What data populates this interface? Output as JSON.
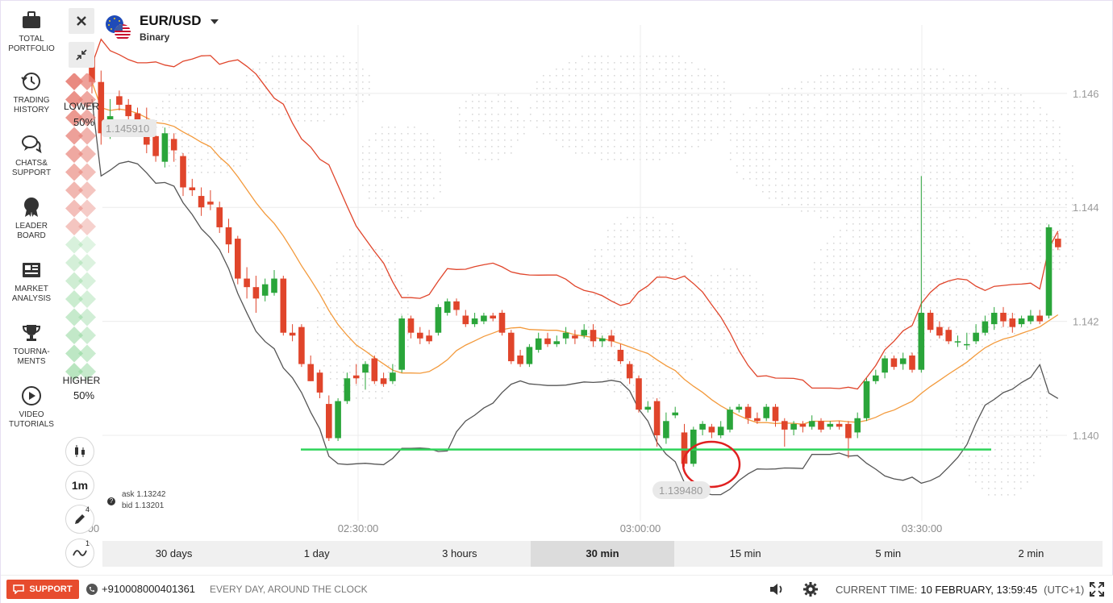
{
  "nav": {
    "items": [
      {
        "icon": "briefcase-icon",
        "label": "TOTAL\nPORTFOLIO"
      },
      {
        "icon": "history-icon",
        "label": "TRADING\nHISTORY"
      },
      {
        "icon": "chat-icon",
        "label": "CHATS&\nSUPPORT"
      },
      {
        "icon": "medal-icon",
        "label": "LEADER\nBOARD"
      },
      {
        "icon": "newspaper-icon",
        "label": "MARKET\nANALYSIS"
      },
      {
        "icon": "trophy-icon",
        "label": "TOURNA-\nMENTS"
      },
      {
        "icon": "play-icon",
        "label": "VIDEO\nTUTORIALS"
      }
    ]
  },
  "asset": {
    "name": "EUR/USD",
    "type": "Binary"
  },
  "sentiment": {
    "lower_label": "LOWER",
    "lower_pct": "50%",
    "higher_label": "HIGHER",
    "higher_pct": "50%",
    "lower_color": "#e8847a",
    "higher_color": "#8fd69a"
  },
  "toolbar": {
    "timeframe_button": "1m",
    "drawing_count": "4",
    "indicator_count": "1"
  },
  "quote": {
    "ask": "ask 1.13242",
    "bid": "bid 1.13201"
  },
  "chart_data": {
    "type": "candlestick",
    "price_labels": [
      "1.146",
      "1.144",
      "1.142",
      "1.140"
    ],
    "time_labels": [
      "02:30:00",
      "03:00:00",
      "03:30:00"
    ],
    "left_time_partial": ":00",
    "top_price_tag": "1.145910",
    "current_price_tag": "1.139480",
    "ylim": [
      1.1385,
      1.1472
    ],
    "support_line_price": 1.13975,
    "colors": {
      "up": "#2aa53a",
      "down": "#e0452b",
      "upper_band": "#e0452b",
      "middle_band": "#f39a3c",
      "lower_band": "#555555",
      "support_line": "#2fd45a",
      "highlight_circle": "#e02020"
    },
    "candles": [
      {
        "o": 1.14662,
        "c": 1.1462,
        "h": 1.1468,
        "l": 1.146
      },
      {
        "o": 1.1462,
        "c": 1.1453,
        "h": 1.1464,
        "l": 1.1451
      },
      {
        "o": 1.1453,
        "c": 1.1456,
        "h": 1.1459,
        "l": 1.1452
      },
      {
        "o": 1.14595,
        "c": 1.1458,
        "h": 1.14605,
        "l": 1.1457
      },
      {
        "o": 1.1458,
        "c": 1.1456,
        "h": 1.1459,
        "l": 1.1453
      },
      {
        "o": 1.14565,
        "c": 1.1454,
        "h": 1.14575,
        "l": 1.14525
      },
      {
        "o": 1.1455,
        "c": 1.1451,
        "h": 1.14575,
        "l": 1.14495
      },
      {
        "o": 1.14525,
        "c": 1.1449,
        "h": 1.1454,
        "l": 1.1448
      },
      {
        "o": 1.1448,
        "c": 1.1453,
        "h": 1.1454,
        "l": 1.1447
      },
      {
        "o": 1.1452,
        "c": 1.145,
        "h": 1.1453,
        "l": 1.1448
      },
      {
        "o": 1.1449,
        "c": 1.14435,
        "h": 1.14495,
        "l": 1.1442
      },
      {
        "o": 1.14435,
        "c": 1.1443,
        "h": 1.1445,
        "l": 1.1442
      },
      {
        "o": 1.1442,
        "c": 1.144,
        "h": 1.14435,
        "l": 1.14385
      },
      {
        "o": 1.1441,
        "c": 1.14405,
        "h": 1.1443,
        "l": 1.14395
      },
      {
        "o": 1.144,
        "c": 1.14365,
        "h": 1.1441,
        "l": 1.14355
      },
      {
        "o": 1.14365,
        "c": 1.14335,
        "h": 1.1438,
        "l": 1.1432
      },
      {
        "o": 1.14345,
        "c": 1.14275,
        "h": 1.1435,
        "l": 1.14265
      },
      {
        "o": 1.14275,
        "c": 1.1426,
        "h": 1.14295,
        "l": 1.1424
      },
      {
        "o": 1.1426,
        "c": 1.1424,
        "h": 1.1428,
        "l": 1.14215
      },
      {
        "o": 1.14245,
        "c": 1.14265,
        "h": 1.14275,
        "l": 1.14235
      },
      {
        "o": 1.1425,
        "c": 1.14275,
        "h": 1.1429,
        "l": 1.14245
      },
      {
        "o": 1.14275,
        "c": 1.1418,
        "h": 1.1428,
        "l": 1.14175
      },
      {
        "o": 1.1418,
        "c": 1.14175,
        "h": 1.14195,
        "l": 1.14165
      },
      {
        "o": 1.1419,
        "c": 1.14125,
        "h": 1.14195,
        "l": 1.1412
      },
      {
        "o": 1.14125,
        "c": 1.14095,
        "h": 1.1414,
        "l": 1.14095
      },
      {
        "o": 1.1411,
        "c": 1.14075,
        "h": 1.14115,
        "l": 1.14065
      },
      {
        "o": 1.14055,
        "c": 1.13995,
        "h": 1.1407,
        "l": 1.1399
      },
      {
        "o": 1.13995,
        "c": 1.1406,
        "h": 1.14065,
        "l": 1.1399
      },
      {
        "o": 1.1406,
        "c": 1.141,
        "h": 1.1411,
        "l": 1.14055
      },
      {
        "o": 1.14105,
        "c": 1.141,
        "h": 1.14125,
        "l": 1.1409
      },
      {
        "o": 1.1411,
        "c": 1.14125,
        "h": 1.1413,
        "l": 1.1408
      },
      {
        "o": 1.14135,
        "c": 1.14095,
        "h": 1.1414,
        "l": 1.1409
      },
      {
        "o": 1.141,
        "c": 1.1409,
        "h": 1.1411,
        "l": 1.14085
      },
      {
        "o": 1.14095,
        "c": 1.1411,
        "h": 1.14125,
        "l": 1.1409
      },
      {
        "o": 1.14115,
        "c": 1.14205,
        "h": 1.1421,
        "l": 1.1411
      },
      {
        "o": 1.14205,
        "c": 1.1418,
        "h": 1.1421,
        "l": 1.1417
      },
      {
        "o": 1.1418,
        "c": 1.1417,
        "h": 1.1419,
        "l": 1.1416
      },
      {
        "o": 1.14175,
        "c": 1.14165,
        "h": 1.14185,
        "l": 1.1416
      },
      {
        "o": 1.1418,
        "c": 1.14225,
        "h": 1.1423,
        "l": 1.14175
      },
      {
        "o": 1.14215,
        "c": 1.14235,
        "h": 1.1424,
        "l": 1.1421
      },
      {
        "o": 1.14235,
        "c": 1.1422,
        "h": 1.1424,
        "l": 1.1421
      },
      {
        "o": 1.1421,
        "c": 1.14195,
        "h": 1.1422,
        "l": 1.1419
      },
      {
        "o": 1.14195,
        "c": 1.14205,
        "h": 1.14215,
        "l": 1.1419
      },
      {
        "o": 1.142,
        "c": 1.1421,
        "h": 1.14215,
        "l": 1.14195
      },
      {
        "o": 1.1421,
        "c": 1.14205,
        "h": 1.14215,
        "l": 1.142
      },
      {
        "o": 1.14215,
        "c": 1.1418,
        "h": 1.1422,
        "l": 1.14175
      },
      {
        "o": 1.1418,
        "c": 1.1413,
        "h": 1.14185,
        "l": 1.14125
      },
      {
        "o": 1.1414,
        "c": 1.14125,
        "h": 1.1415,
        "l": 1.1412
      },
      {
        "o": 1.14125,
        "c": 1.14155,
        "h": 1.1416,
        "l": 1.1412
      },
      {
        "o": 1.1415,
        "c": 1.1417,
        "h": 1.1418,
        "l": 1.14145
      },
      {
        "o": 1.1417,
        "c": 1.1416,
        "h": 1.1418,
        "l": 1.14155
      },
      {
        "o": 1.1416,
        "c": 1.14165,
        "h": 1.14175,
        "l": 1.14155
      },
      {
        "o": 1.1417,
        "c": 1.1418,
        "h": 1.1419,
        "l": 1.1416
      },
      {
        "o": 1.14175,
        "c": 1.1417,
        "h": 1.14185,
        "l": 1.1416
      },
      {
        "o": 1.14175,
        "c": 1.14185,
        "h": 1.14195,
        "l": 1.1417
      },
      {
        "o": 1.14185,
        "c": 1.14165,
        "h": 1.14195,
        "l": 1.14155
      },
      {
        "o": 1.14165,
        "c": 1.1417,
        "h": 1.14175,
        "l": 1.14155
      },
      {
        "o": 1.14175,
        "c": 1.14165,
        "h": 1.14185,
        "l": 1.14155
      },
      {
        "o": 1.1415,
        "c": 1.1413,
        "h": 1.1416,
        "l": 1.14125
      },
      {
        "o": 1.14125,
        "c": 1.141,
        "h": 1.1413,
        "l": 1.1409
      },
      {
        "o": 1.141,
        "c": 1.14045,
        "h": 1.14105,
        "l": 1.1404
      },
      {
        "o": 1.14045,
        "c": 1.1405,
        "h": 1.1406,
        "l": 1.1404
      },
      {
        "o": 1.1406,
        "c": 1.14,
        "h": 1.14065,
        "l": 1.1398
      },
      {
        "o": 1.13995,
        "c": 1.14025,
        "h": 1.1404,
        "l": 1.13985
      },
      {
        "o": 1.14035,
        "c": 1.1404,
        "h": 1.1405,
        "l": 1.1403
      },
      {
        "o": 1.14005,
        "c": 1.1395,
        "h": 1.1402,
        "l": 1.13945
      },
      {
        "o": 1.1395,
        "c": 1.1401,
        "h": 1.14015,
        "l": 1.13945
      },
      {
        "o": 1.1401,
        "c": 1.1402,
        "h": 1.14025,
        "l": 1.14
      },
      {
        "o": 1.14015,
        "c": 1.14005,
        "h": 1.1402,
        "l": 1.13995
      },
      {
        "o": 1.14,
        "c": 1.14015,
        "h": 1.14025,
        "l": 1.13995
      },
      {
        "o": 1.1401,
        "c": 1.14045,
        "h": 1.1405,
        "l": 1.14005
      },
      {
        "o": 1.14045,
        "c": 1.1405,
        "h": 1.14055,
        "l": 1.1404
      },
      {
        "o": 1.1405,
        "c": 1.1403,
        "h": 1.14055,
        "l": 1.1402
      },
      {
        "o": 1.1403,
        "c": 1.14025,
        "h": 1.1404,
        "l": 1.1402
      },
      {
        "o": 1.1403,
        "c": 1.1405,
        "h": 1.14055,
        "l": 1.14025
      },
      {
        "o": 1.1405,
        "c": 1.14025,
        "h": 1.14055,
        "l": 1.14015
      },
      {
        "o": 1.14025,
        "c": 1.1401,
        "h": 1.1403,
        "l": 1.1398
      },
      {
        "o": 1.1401,
        "c": 1.1402,
        "h": 1.14025,
        "l": 1.14
      },
      {
        "o": 1.1402,
        "c": 1.14015,
        "h": 1.14025,
        "l": 1.14005
      },
      {
        "o": 1.14015,
        "c": 1.14025,
        "h": 1.14035,
        "l": 1.1401
      },
      {
        "o": 1.14025,
        "c": 1.1401,
        "h": 1.1403,
        "l": 1.14005
      },
      {
        "o": 1.14015,
        "c": 1.1402,
        "h": 1.14025,
        "l": 1.1401
      },
      {
        "o": 1.1402,
        "c": 1.14015,
        "h": 1.14025,
        "l": 1.1401
      },
      {
        "o": 1.1402,
        "c": 1.13995,
        "h": 1.14025,
        "l": 1.1396
      },
      {
        "o": 1.14005,
        "c": 1.1403,
        "h": 1.1404,
        "l": 1.13995
      },
      {
        "o": 1.1403,
        "c": 1.14095,
        "h": 1.141,
        "l": 1.14025
      },
      {
        "o": 1.14095,
        "c": 1.14105,
        "h": 1.14115,
        "l": 1.1409
      },
      {
        "o": 1.1411,
        "c": 1.14135,
        "h": 1.1414,
        "l": 1.141
      },
      {
        "o": 1.14135,
        "c": 1.1412,
        "h": 1.1414,
        "l": 1.14115
      },
      {
        "o": 1.14125,
        "c": 1.14135,
        "h": 1.14145,
        "l": 1.14115
      },
      {
        "o": 1.1414,
        "c": 1.14115,
        "h": 1.14145,
        "l": 1.1411
      },
      {
        "o": 1.14115,
        "c": 1.14215,
        "h": 1.14455,
        "l": 1.1411
      },
      {
        "o": 1.14215,
        "c": 1.14185,
        "h": 1.1422,
        "l": 1.1418
      },
      {
        "o": 1.1419,
        "c": 1.14175,
        "h": 1.142,
        "l": 1.1417
      },
      {
        "o": 1.14185,
        "c": 1.14165,
        "h": 1.1419,
        "l": 1.1416
      },
      {
        "o": 1.14165,
        "c": 1.14165,
        "h": 1.14175,
        "l": 1.14155
      },
      {
        "o": 1.1416,
        "c": 1.1416,
        "h": 1.1418,
        "l": 1.1415
      },
      {
        "o": 1.14165,
        "c": 1.1418,
        "h": 1.14195,
        "l": 1.1416
      },
      {
        "o": 1.1418,
        "c": 1.142,
        "h": 1.1421,
        "l": 1.14175
      },
      {
        "o": 1.14195,
        "c": 1.14215,
        "h": 1.14225,
        "l": 1.14185
      },
      {
        "o": 1.14215,
        "c": 1.142,
        "h": 1.14225,
        "l": 1.1419
      },
      {
        "o": 1.14205,
        "c": 1.1419,
        "h": 1.14215,
        "l": 1.1418
      },
      {
        "o": 1.14195,
        "c": 1.14205,
        "h": 1.1421,
        "l": 1.1419
      },
      {
        "o": 1.142,
        "c": 1.1421,
        "h": 1.1422,
        "l": 1.14195
      },
      {
        "o": 1.1421,
        "c": 1.142,
        "h": 1.1422,
        "l": 1.14195
      },
      {
        "o": 1.1421,
        "c": 1.14365,
        "h": 1.1437,
        "l": 1.14205
      },
      {
        "o": 1.14345,
        "c": 1.1433,
        "h": 1.14355,
        "l": 1.14325
      }
    ]
  },
  "timeframes": {
    "items": [
      "30 days",
      "1 day",
      "3 hours",
      "30 min",
      "15 min",
      "5 min",
      "2 min"
    ],
    "active_index": 3
  },
  "footer": {
    "support_label": "SUPPORT",
    "phone": "+910008000401361",
    "schedule": "EVERY DAY, AROUND THE CLOCK",
    "time_label": "CURRENT TIME:",
    "time_value": "10 FEBRUARY, 13:59:45",
    "timezone": "(UTC+1)"
  }
}
